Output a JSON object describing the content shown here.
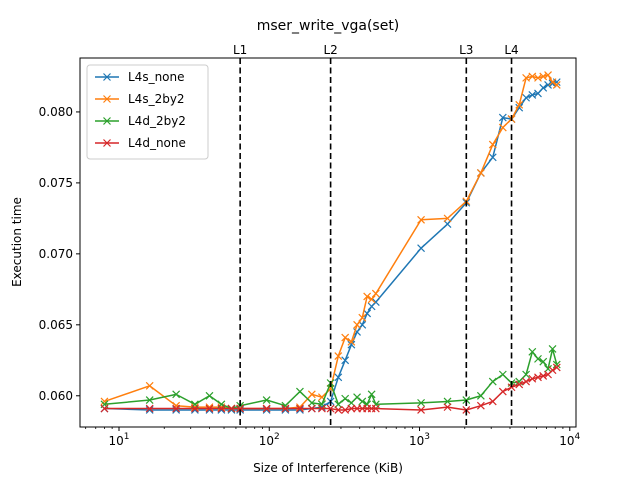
{
  "chart_data": {
    "type": "line",
    "title": "mser_write_vga(set)",
    "xlabel": "Size of Interference (KiB)",
    "ylabel": "Execution time",
    "xscale": "log",
    "xlim": [
      5.5,
      11000
    ],
    "ylim": [
      0.0578,
      0.0838
    ],
    "x_ticks": [
      {
        "value": 10,
        "label": "10^1"
      },
      {
        "value": 100,
        "label": "10^2"
      },
      {
        "value": 1000,
        "label": "10^3"
      },
      {
        "value": 10000,
        "label": "10^4"
      }
    ],
    "y_ticks": [
      {
        "value": 0.06,
        "label": "0.060"
      },
      {
        "value": 0.065,
        "label": "0.065"
      },
      {
        "value": 0.07,
        "label": "0.070"
      },
      {
        "value": 0.075,
        "label": "0.075"
      },
      {
        "value": 0.08,
        "label": "0.080"
      }
    ],
    "vlines": [
      {
        "x": 64,
        "label": "L1"
      },
      {
        "x": 256,
        "label": "L2"
      },
      {
        "x": 2048,
        "label": "L3"
      },
      {
        "x": 4096,
        "label": "L4"
      }
    ],
    "legend": {
      "placement": "top-left"
    },
    "marker": "x",
    "series": [
      {
        "name": "L4s_none",
        "color": "#1f77b4",
        "points": [
          [
            8,
            0.0591
          ],
          [
            16,
            0.059
          ],
          [
            24,
            0.059
          ],
          [
            32,
            0.059
          ],
          [
            40,
            0.059
          ],
          [
            48,
            0.059
          ],
          [
            56,
            0.059
          ],
          [
            64,
            0.059
          ],
          [
            96,
            0.059
          ],
          [
            128,
            0.059
          ],
          [
            160,
            0.059
          ],
          [
            192,
            0.0591
          ],
          [
            224,
            0.0592
          ],
          [
            256,
            0.0596
          ],
          [
            288,
            0.0613
          ],
          [
            320,
            0.0625
          ],
          [
            352,
            0.0636
          ],
          [
            384,
            0.0645
          ],
          [
            416,
            0.065
          ],
          [
            448,
            0.0658
          ],
          [
            480,
            0.0663
          ],
          [
            512,
            0.0666
          ],
          [
            1024,
            0.0704
          ],
          [
            1536,
            0.0721
          ],
          [
            2048,
            0.0736
          ],
          [
            2560,
            0.0757
          ],
          [
            3072,
            0.0768
          ],
          [
            3584,
            0.0796
          ],
          [
            4096,
            0.0795
          ],
          [
            4608,
            0.0803
          ],
          [
            5120,
            0.081
          ],
          [
            5632,
            0.0812
          ],
          [
            6144,
            0.0813
          ],
          [
            6656,
            0.0817
          ],
          [
            7168,
            0.0819
          ],
          [
            7680,
            0.082
          ],
          [
            8192,
            0.0821
          ]
        ]
      },
      {
        "name": "L4s_2by2",
        "color": "#ff7f0e",
        "points": [
          [
            8,
            0.0596
          ],
          [
            16,
            0.0607
          ],
          [
            24,
            0.0593
          ],
          [
            32,
            0.0592
          ],
          [
            40,
            0.0592
          ],
          [
            48,
            0.0592
          ],
          [
            56,
            0.0591
          ],
          [
            64,
            0.0591
          ],
          [
            96,
            0.0591
          ],
          [
            128,
            0.0591
          ],
          [
            160,
            0.0592
          ],
          [
            192,
            0.0601
          ],
          [
            224,
            0.0599
          ],
          [
            256,
            0.0605
          ],
          [
            288,
            0.0628
          ],
          [
            320,
            0.0641
          ],
          [
            352,
            0.0638
          ],
          [
            384,
            0.065
          ],
          [
            416,
            0.0655
          ],
          [
            448,
            0.067
          ],
          [
            480,
            0.0668
          ],
          [
            512,
            0.0672
          ],
          [
            1024,
            0.0724
          ],
          [
            1536,
            0.0725
          ],
          [
            2048,
            0.0737
          ],
          [
            2560,
            0.0757
          ],
          [
            3072,
            0.0777
          ],
          [
            3584,
            0.0789
          ],
          [
            4096,
            0.0795
          ],
          [
            4608,
            0.0805
          ],
          [
            5120,
            0.0824
          ],
          [
            5632,
            0.0825
          ],
          [
            6144,
            0.0824
          ],
          [
            6656,
            0.0825
          ],
          [
            7168,
            0.0826
          ],
          [
            7680,
            0.0821
          ],
          [
            8192,
            0.0819
          ]
        ]
      },
      {
        "name": "L4d_2by2",
        "color": "#2ca02c",
        "points": [
          [
            8,
            0.0594
          ],
          [
            16,
            0.0597
          ],
          [
            24,
            0.0601
          ],
          [
            32,
            0.0594
          ],
          [
            40,
            0.06
          ],
          [
            48,
            0.0594
          ],
          [
            56,
            0.0591
          ],
          [
            64,
            0.0593
          ],
          [
            96,
            0.0597
          ],
          [
            128,
            0.0593
          ],
          [
            160,
            0.0603
          ],
          [
            192,
            0.0595
          ],
          [
            224,
            0.0594
          ],
          [
            256,
            0.0609
          ],
          [
            288,
            0.0594
          ],
          [
            320,
            0.0598
          ],
          [
            352,
            0.0595
          ],
          [
            384,
            0.0599
          ],
          [
            416,
            0.0596
          ],
          [
            448,
            0.0594
          ],
          [
            480,
            0.0601
          ],
          [
            512,
            0.0594
          ],
          [
            1024,
            0.0595
          ],
          [
            1536,
            0.0596
          ],
          [
            2048,
            0.0597
          ],
          [
            2560,
            0.06
          ],
          [
            3072,
            0.061
          ],
          [
            3584,
            0.0615
          ],
          [
            4096,
            0.0609
          ],
          [
            4608,
            0.061
          ],
          [
            5120,
            0.0615
          ],
          [
            5632,
            0.0631
          ],
          [
            6144,
            0.0626
          ],
          [
            6656,
            0.0624
          ],
          [
            7168,
            0.0619
          ],
          [
            7680,
            0.0633
          ],
          [
            8192,
            0.0622
          ]
        ]
      },
      {
        "name": "L4d_none",
        "color": "#d62728",
        "points": [
          [
            8,
            0.0591
          ],
          [
            16,
            0.0591
          ],
          [
            24,
            0.0591
          ],
          [
            32,
            0.0591
          ],
          [
            40,
            0.0591
          ],
          [
            48,
            0.0591
          ],
          [
            56,
            0.0591
          ],
          [
            64,
            0.0591
          ],
          [
            96,
            0.0591
          ],
          [
            128,
            0.0591
          ],
          [
            160,
            0.0591
          ],
          [
            192,
            0.0591
          ],
          [
            224,
            0.0591
          ],
          [
            256,
            0.0591
          ],
          [
            288,
            0.059
          ],
          [
            320,
            0.059
          ],
          [
            352,
            0.0591
          ],
          [
            384,
            0.0591
          ],
          [
            416,
            0.0591
          ],
          [
            448,
            0.0591
          ],
          [
            480,
            0.0591
          ],
          [
            512,
            0.0591
          ],
          [
            1024,
            0.059
          ],
          [
            1536,
            0.0592
          ],
          [
            2048,
            0.059
          ],
          [
            2560,
            0.0593
          ],
          [
            3072,
            0.0596
          ],
          [
            3584,
            0.0603
          ],
          [
            4096,
            0.0606
          ],
          [
            4608,
            0.0608
          ],
          [
            5120,
            0.061
          ],
          [
            5632,
            0.0612
          ],
          [
            6144,
            0.0613
          ],
          [
            6656,
            0.0614
          ],
          [
            7168,
            0.0615
          ],
          [
            7680,
            0.0618
          ],
          [
            8192,
            0.062
          ]
        ]
      }
    ]
  }
}
